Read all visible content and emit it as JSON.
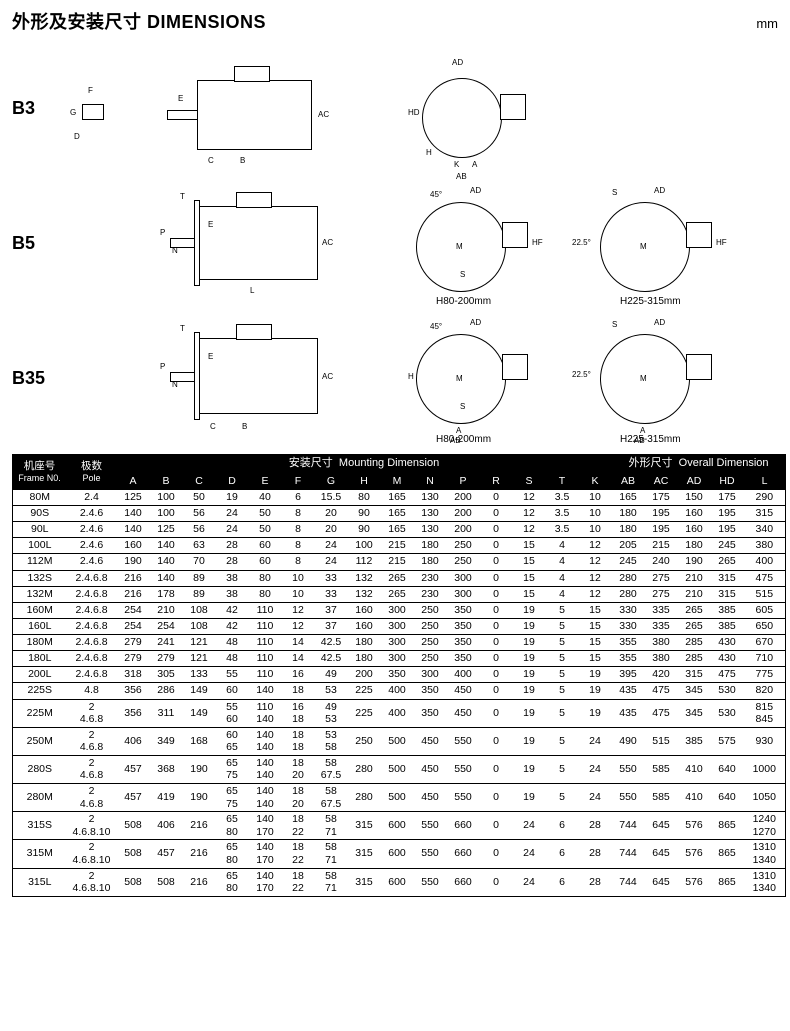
{
  "header": {
    "title_cn": "外形及安装尺寸",
    "title_en": "DIMENSIONS",
    "unit": "mm"
  },
  "diagram_rows": {
    "b3": "B3",
    "b5": "B5",
    "b35": "B35",
    "note_small": "H80-200mm",
    "note_large": "H225-315mm",
    "angle45": "45°",
    "angle225": "22.5°"
  },
  "table": {
    "headers": {
      "frame_cn": "机座号",
      "frame_en": "Frame N0.",
      "pole_cn": "极数",
      "pole_en": "Pole",
      "mounting_cn": "安装尺寸",
      "mounting_en": "Mounting Dimension",
      "overall_cn": "外形尺寸",
      "overall_en": "Overall Dimension",
      "cols": [
        "A",
        "B",
        "C",
        "D",
        "E",
        "F",
        "G",
        "H",
        "M",
        "N",
        "P",
        "R",
        "S",
        "T",
        "K",
        "AB",
        "AC",
        "AD",
        "HD",
        "L"
      ]
    },
    "rows": [
      {
        "frame": "80M",
        "pole": "2.4",
        "A": "125",
        "B": "100",
        "C": "50",
        "D": "19",
        "E": "40",
        "F": "6",
        "G": "15.5",
        "H": "80",
        "M": "165",
        "N": "130",
        "P": "200",
        "R": "0",
        "S": "12",
        "T": "3.5",
        "K": "10",
        "AB": "165",
        "AC": "175",
        "AD": "150",
        "HD": "175",
        "L": "290"
      },
      {
        "frame": "90S",
        "pole": "2.4.6",
        "A": "140",
        "B": "100",
        "C": "56",
        "D": "24",
        "E": "50",
        "F": "8",
        "G": "20",
        "H": "90",
        "M": "165",
        "N": "130",
        "P": "200",
        "R": "0",
        "S": "12",
        "T": "3.5",
        "K": "10",
        "AB": "180",
        "AC": "195",
        "AD": "160",
        "HD": "195",
        "L": "315"
      },
      {
        "frame": "90L",
        "pole": "2.4.6",
        "A": "140",
        "B": "125",
        "C": "56",
        "D": "24",
        "E": "50",
        "F": "8",
        "G": "20",
        "H": "90",
        "M": "165",
        "N": "130",
        "P": "200",
        "R": "0",
        "S": "12",
        "T": "3.5",
        "K": "10",
        "AB": "180",
        "AC": "195",
        "AD": "160",
        "HD": "195",
        "L": "340"
      },
      {
        "frame": "100L",
        "pole": "2.4.6",
        "A": "160",
        "B": "140",
        "C": "63",
        "D": "28",
        "E": "60",
        "F": "8",
        "G": "24",
        "H": "100",
        "M": "215",
        "N": "180",
        "P": "250",
        "R": "0",
        "S": "15",
        "T": "4",
        "K": "12",
        "AB": "205",
        "AC": "215",
        "AD": "180",
        "HD": "245",
        "L": "380"
      },
      {
        "frame": "112M",
        "pole": "2.4.6",
        "A": "190",
        "B": "140",
        "C": "70",
        "D": "28",
        "E": "60",
        "F": "8",
        "G": "24",
        "H": "112",
        "M": "215",
        "N": "180",
        "P": "250",
        "R": "0",
        "S": "15",
        "T": "4",
        "K": "12",
        "AB": "245",
        "AC": "240",
        "AD": "190",
        "HD": "265",
        "L": "400"
      },
      {
        "frame": "132S",
        "pole": "2.4.6.8",
        "A": "216",
        "B": "140",
        "C": "89",
        "D": "38",
        "E": "80",
        "F": "10",
        "G": "33",
        "H": "132",
        "M": "265",
        "N": "230",
        "P": "300",
        "R": "0",
        "S": "15",
        "T": "4",
        "K": "12",
        "AB": "280",
        "AC": "275",
        "AD": "210",
        "HD": "315",
        "L": "475"
      },
      {
        "frame": "132M",
        "pole": "2.4.6.8",
        "A": "216",
        "B": "178",
        "C": "89",
        "D": "38",
        "E": "80",
        "F": "10",
        "G": "33",
        "H": "132",
        "M": "265",
        "N": "230",
        "P": "300",
        "R": "0",
        "S": "15",
        "T": "4",
        "K": "12",
        "AB": "280",
        "AC": "275",
        "AD": "210",
        "HD": "315",
        "L": "515"
      },
      {
        "frame": "160M",
        "pole": "2.4.6.8",
        "A": "254",
        "B": "210",
        "C": "108",
        "D": "42",
        "E": "110",
        "F": "12",
        "G": "37",
        "H": "160",
        "M": "300",
        "N": "250",
        "P": "350",
        "R": "0",
        "S": "19",
        "T": "5",
        "K": "15",
        "AB": "330",
        "AC": "335",
        "AD": "265",
        "HD": "385",
        "L": "605"
      },
      {
        "frame": "160L",
        "pole": "2.4.6.8",
        "A": "254",
        "B": "254",
        "C": "108",
        "D": "42",
        "E": "110",
        "F": "12",
        "G": "37",
        "H": "160",
        "M": "300",
        "N": "250",
        "P": "350",
        "R": "0",
        "S": "19",
        "T": "5",
        "K": "15",
        "AB": "330",
        "AC": "335",
        "AD": "265",
        "HD": "385",
        "L": "650"
      },
      {
        "frame": "180M",
        "pole": "2.4.6.8",
        "A": "279",
        "B": "241",
        "C": "121",
        "D": "48",
        "E": "110",
        "F": "14",
        "G": "42.5",
        "H": "180",
        "M": "300",
        "N": "250",
        "P": "350",
        "R": "0",
        "S": "19",
        "T": "5",
        "K": "15",
        "AB": "355",
        "AC": "380",
        "AD": "285",
        "HD": "430",
        "L": "670"
      },
      {
        "frame": "180L",
        "pole": "2.4.6.8",
        "A": "279",
        "B": "279",
        "C": "121",
        "D": "48",
        "E": "110",
        "F": "14",
        "G": "42.5",
        "H": "180",
        "M": "300",
        "N": "250",
        "P": "350",
        "R": "0",
        "S": "19",
        "T": "5",
        "K": "15",
        "AB": "355",
        "AC": "380",
        "AD": "285",
        "HD": "430",
        "L": "710"
      },
      {
        "frame": "200L",
        "pole": "2.4.6.8",
        "A": "318",
        "B": "305",
        "C": "133",
        "D": "55",
        "E": "110",
        "F": "16",
        "G": "49",
        "H": "200",
        "M": "350",
        "N": "300",
        "P": "400",
        "R": "0",
        "S": "19",
        "T": "5",
        "K": "19",
        "AB": "395",
        "AC": "420",
        "AD": "315",
        "HD": "475",
        "L": "775"
      },
      {
        "frame": "225S",
        "pole": "4.8",
        "A": "356",
        "B": "286",
        "C": "149",
        "D": "60",
        "E": "140",
        "F": "18",
        "G": "53",
        "H": "225",
        "M": "400",
        "N": "350",
        "P": "450",
        "R": "0",
        "S": "19",
        "T": "5",
        "K": "19",
        "AB": "435",
        "AC": "475",
        "AD": "345",
        "HD": "530",
        "L": "820"
      },
      {
        "frame": "225M",
        "pole": [
          "2",
          "4.6.8"
        ],
        "A": "356",
        "B": "311",
        "C": "149",
        "D": [
          "55",
          "60"
        ],
        "E": [
          "110",
          "140"
        ],
        "F": [
          "16",
          "18"
        ],
        "G": [
          "49",
          "53"
        ],
        "H": "225",
        "M": "400",
        "N": "350",
        "P": "450",
        "R": "0",
        "S": "19",
        "T": "5",
        "K": "19",
        "AB": "435",
        "AC": "475",
        "AD": "345",
        "HD": "530",
        "L": [
          "815",
          "845"
        ]
      },
      {
        "frame": "250M",
        "pole": [
          "2",
          "4.6.8"
        ],
        "A": "406",
        "B": "349",
        "C": "168",
        "D": [
          "60",
          "65"
        ],
        "E": [
          "140",
          "140"
        ],
        "F": [
          "18",
          "18"
        ],
        "G": [
          "53",
          "58"
        ],
        "H": "250",
        "M": "500",
        "N": "450",
        "P": "550",
        "R": "0",
        "S": "19",
        "T": "5",
        "K": "24",
        "AB": "490",
        "AC": "515",
        "AD": "385",
        "HD": "575",
        "L": "930"
      },
      {
        "frame": "280S",
        "pole": [
          "2",
          "4.6.8"
        ],
        "A": "457",
        "B": "368",
        "C": "190",
        "D": [
          "65",
          "75"
        ],
        "E": [
          "140",
          "140"
        ],
        "F": [
          "18",
          "20"
        ],
        "G": [
          "58",
          "67.5"
        ],
        "H": "280",
        "M": "500",
        "N": "450",
        "P": "550",
        "R": "0",
        "S": "19",
        "T": "5",
        "K": "24",
        "AB": "550",
        "AC": "585",
        "AD": "410",
        "HD": "640",
        "L": "1000"
      },
      {
        "frame": "280M",
        "pole": [
          "2",
          "4.6.8"
        ],
        "A": "457",
        "B": "419",
        "C": "190",
        "D": [
          "65",
          "75"
        ],
        "E": [
          "140",
          "140"
        ],
        "F": [
          "18",
          "20"
        ],
        "G": [
          "58",
          "67.5"
        ],
        "H": "280",
        "M": "500",
        "N": "450",
        "P": "550",
        "R": "0",
        "S": "19",
        "T": "5",
        "K": "24",
        "AB": "550",
        "AC": "585",
        "AD": "410",
        "HD": "640",
        "L": "1050"
      },
      {
        "frame": "315S",
        "pole": [
          "2",
          "4.6.8.10"
        ],
        "A": "508",
        "B": "406",
        "C": "216",
        "D": [
          "65",
          "80"
        ],
        "E": [
          "140",
          "170"
        ],
        "F": [
          "18",
          "22"
        ],
        "G": [
          "58",
          "71"
        ],
        "H": "315",
        "M": "600",
        "N": "550",
        "P": "660",
        "R": "0",
        "S": "24",
        "T": "6",
        "K": "28",
        "AB": "744",
        "AC": "645",
        "AD": "576",
        "HD": "865",
        "L": [
          "1240",
          "1270"
        ]
      },
      {
        "frame": "315M",
        "pole": [
          "2",
          "4.6.8.10"
        ],
        "A": "508",
        "B": "457",
        "C": "216",
        "D": [
          "65",
          "80"
        ],
        "E": [
          "140",
          "170"
        ],
        "F": [
          "18",
          "22"
        ],
        "G": [
          "58",
          "71"
        ],
        "H": "315",
        "M": "600",
        "N": "550",
        "P": "660",
        "R": "0",
        "S": "24",
        "T": "6",
        "K": "28",
        "AB": "744",
        "AC": "645",
        "AD": "576",
        "HD": "865",
        "L": [
          "1310",
          "1340"
        ]
      },
      {
        "frame": "315L",
        "pole": [
          "2",
          "4.6.8.10"
        ],
        "A": "508",
        "B": "508",
        "C": "216",
        "D": [
          "65",
          "80"
        ],
        "E": [
          "140",
          "170"
        ],
        "F": [
          "18",
          "22"
        ],
        "G": [
          "58",
          "71"
        ],
        "H": "315",
        "M": "600",
        "N": "550",
        "P": "660",
        "R": "0",
        "S": "24",
        "T": "6",
        "K": "28",
        "AB": "744",
        "AC": "645",
        "AD": "576",
        "HD": "865",
        "L": [
          "1310",
          "1340"
        ]
      }
    ]
  },
  "colors": {
    "ink": "#000000",
    "paper": "#ffffff",
    "header_bg": "#000000",
    "header_fg": "#ffffff"
  }
}
